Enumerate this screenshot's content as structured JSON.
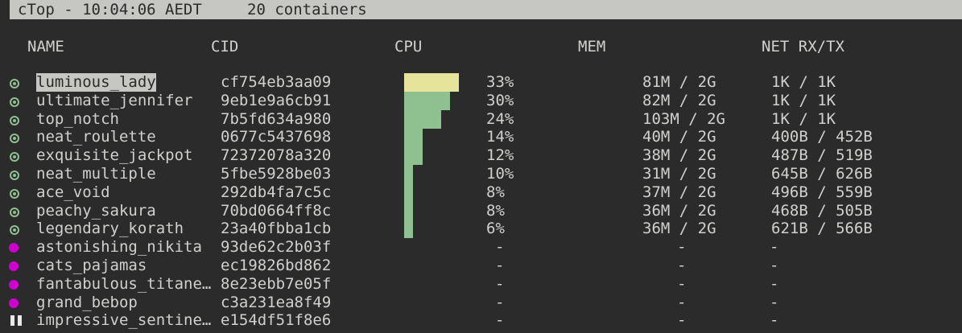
{
  "title": {
    "app": "cTop - 10:04:06 AEDT",
    "count": "20 containers"
  },
  "columns": {
    "name": "NAME",
    "cid": "CID",
    "cpu": "CPU",
    "mem": "MEM",
    "net": "NET RX/TX"
  },
  "colors": {
    "running": "#8fc08f",
    "stopped": "#d000d0",
    "selected_bar": "#e6e39a",
    "background": "#2b2b2c"
  },
  "containers": [
    {
      "status": "running",
      "name": "luminous_lady",
      "cid": "cf754eb3aa09",
      "cpu": "33%",
      "cpu_value": 33,
      "mem": "81M / 2G",
      "net": "1K / 1K",
      "selected": true
    },
    {
      "status": "running",
      "name": "ultimate_jennifer",
      "cid": "9eb1e9a6cb91",
      "cpu": "30%",
      "cpu_value": 30,
      "mem": "82M / 2G",
      "net": "1K / 1K"
    },
    {
      "status": "running",
      "name": "top_notch",
      "cid": "7b5fd634a980",
      "cpu": "24%",
      "cpu_value": 24,
      "mem": "103M / 2G",
      "net": "1K / 1K"
    },
    {
      "status": "running",
      "name": "neat_roulette",
      "cid": "0677c5437698",
      "cpu": "14%",
      "cpu_value": 14,
      "mem": "40M / 2G",
      "net": "400B / 452B"
    },
    {
      "status": "running",
      "name": "exquisite_jackpot",
      "cid": "72372078a320",
      "cpu": "12%",
      "cpu_value": 12,
      "mem": "38M / 2G",
      "net": "487B / 519B"
    },
    {
      "status": "running",
      "name": "neat_multiple",
      "cid": "5fbe5928be03",
      "cpu": "10%",
      "cpu_value": 10,
      "mem": "31M / 2G",
      "net": "645B / 626B"
    },
    {
      "status": "running",
      "name": "ace_void",
      "cid": "292db4fa7c5c",
      "cpu": "8%",
      "cpu_value": 8,
      "mem": "37M / 2G",
      "net": "496B / 559B"
    },
    {
      "status": "running",
      "name": "peachy_sakura",
      "cid": "70bd0664ff8c",
      "cpu": "8%",
      "cpu_value": 8,
      "mem": "36M / 2G",
      "net": "468B / 505B"
    },
    {
      "status": "running",
      "name": "legendary_korath",
      "cid": "23a40fbba1cb",
      "cpu": "6%",
      "cpu_value": 6,
      "mem": "36M / 2G",
      "net": "621B / 566B"
    },
    {
      "status": "stopped",
      "name": "astonishing_nikita",
      "cid": "93de62c2b03f",
      "cpu": "-",
      "mem": "-",
      "net": "-"
    },
    {
      "status": "stopped",
      "name": "cats_pajamas",
      "cid": "ec19826bd862",
      "cpu": "-",
      "mem": "-",
      "net": "-"
    },
    {
      "status": "stopped",
      "name": "fantabulous_titane…",
      "cid": "8e23ebb7e05f",
      "cpu": "-",
      "mem": "-",
      "net": "-"
    },
    {
      "status": "stopped",
      "name": "grand_bebop",
      "cid": "c3a231ea8f49",
      "cpu": "-",
      "mem": "-",
      "net": "-"
    },
    {
      "status": "paused",
      "name": "impressive_sentine…",
      "cid": "e154df51f8e6",
      "cpu": "-",
      "mem": "-",
      "net": "-"
    }
  ]
}
